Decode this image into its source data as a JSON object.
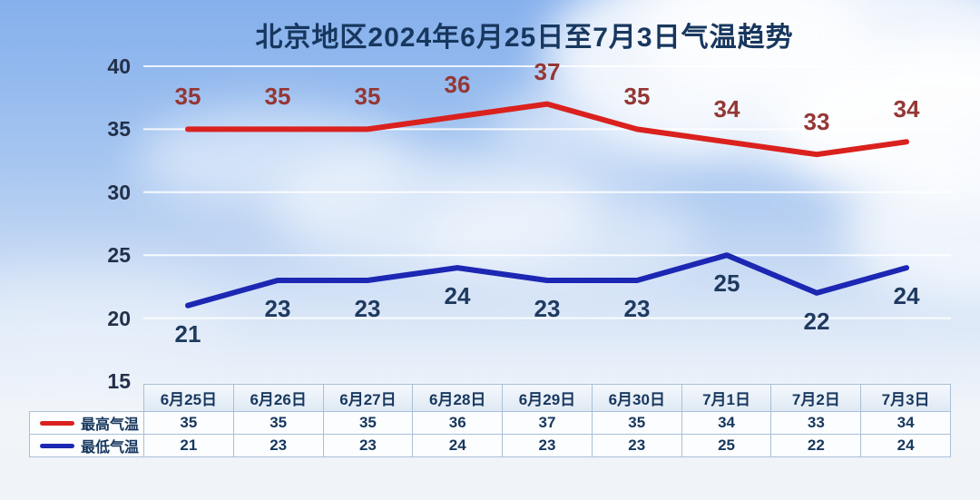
{
  "title": "北京地区2024年6月25日至7月3日气温趋势",
  "colors": {
    "title_text": "#17375E",
    "axis_text": "#233049",
    "table_text": "#17375E",
    "grid_line": "#FFFFFF"
  },
  "chart_data": {
    "type": "line",
    "title": "北京地区2024年6月25日至7月3日气温趋势",
    "categories": [
      "6月25日",
      "6月26日",
      "6月27日",
      "6月28日",
      "6月29日",
      "6月30日",
      "7月1日",
      "7月2日",
      "7月3日"
    ],
    "series": [
      {
        "name": "最高气温",
        "values": [
          35,
          35,
          35,
          36,
          37,
          35,
          34,
          33,
          34
        ],
        "color": "#DA211E",
        "label_color": "#943735"
      },
      {
        "name": "最低气温",
        "values": [
          21,
          23,
          23,
          24,
          23,
          23,
          25,
          22,
          24
        ],
        "color": "#1C27B3",
        "label_color": "#1F3A5F"
      }
    ],
    "ylim": [
      15,
      40
    ],
    "yticks": [
      15,
      20,
      25,
      30,
      35,
      40
    ],
    "grid": true,
    "data_labels": true,
    "legend_position": "bottom-left-table",
    "xlabel": "",
    "ylabel": ""
  }
}
